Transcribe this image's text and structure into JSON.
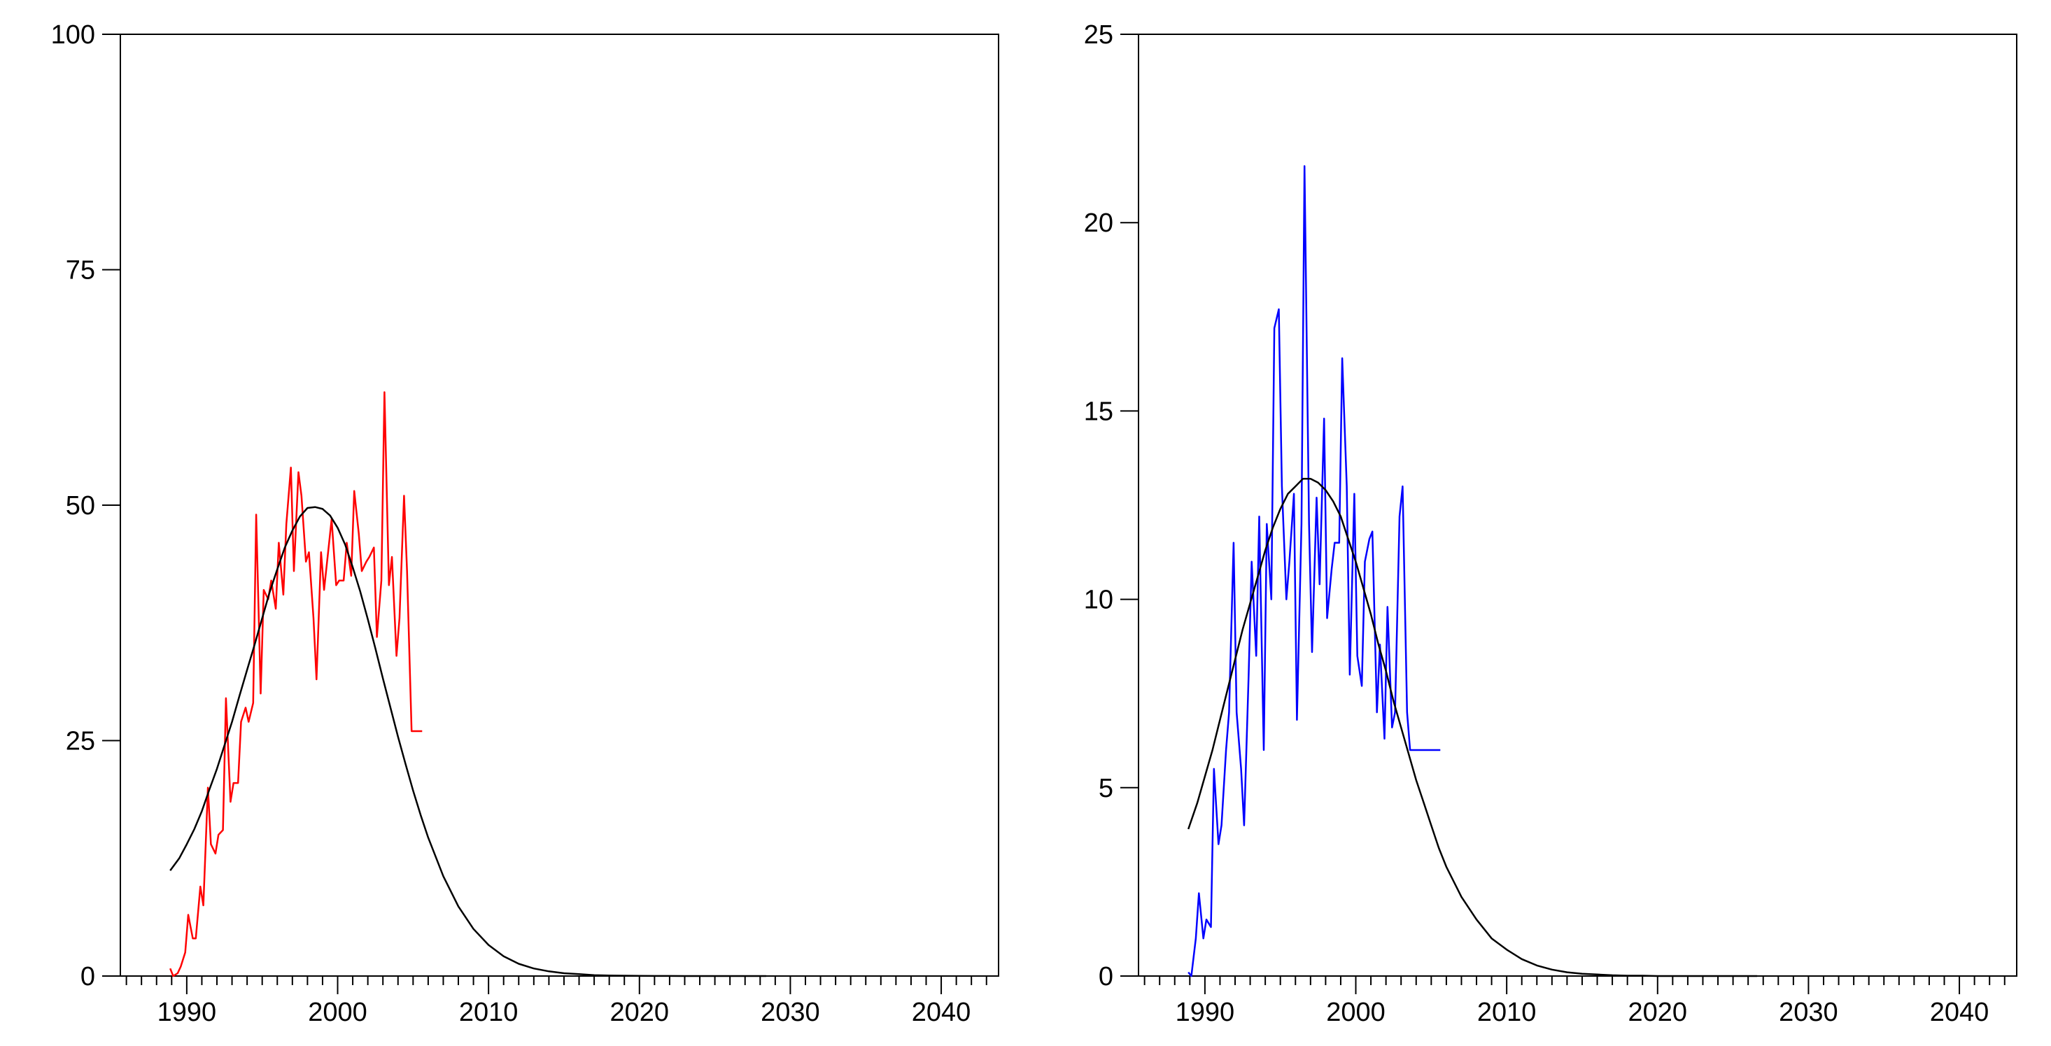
{
  "chart_data": [
    {
      "type": "line",
      "title": "",
      "xlabel": "",
      "ylabel": "",
      "xlim": [
        1985.6,
        2043.8
      ],
      "ylim": [
        0,
        100
      ],
      "x_ticks": [
        1990,
        2000,
        2010,
        2020,
        2030,
        2040
      ],
      "y_ticks": [
        0,
        25,
        50,
        75,
        100
      ],
      "grid": false,
      "legend": "none",
      "series": [
        {
          "color": "#ff0000",
          "x": [
            1988.9,
            1989.1,
            1989.4,
            1989.6,
            1989.9,
            1990.1,
            1990.4,
            1990.6,
            1990.9,
            1991.1,
            1991.4,
            1991.6,
            1991.9,
            1992.1,
            1992.4,
            1992.6,
            1992.9,
            1993.1,
            1993.4,
            1993.6,
            1993.9,
            1994.1,
            1994.4,
            1994.6,
            1994.9,
            1995.1,
            1995.4,
            1995.6,
            1995.9,
            1996.1,
            1996.4,
            1996.6,
            1996.9,
            1997.1,
            1997.4,
            1997.6,
            1997.9,
            1998.1,
            1998.4,
            1998.6,
            1998.9,
            1999.1,
            1999.4,
            1999.6,
            1999.9,
            2000.1,
            2000.4,
            2000.6,
            2000.9,
            2001.1,
            2001.4,
            2001.6,
            2001.9,
            2002.1,
            2002.4,
            2002.6,
            2002.9,
            2003.1,
            2003.4,
            2003.6,
            2003.9,
            2004.1,
            2004.4,
            2004.6,
            2004.9,
            2005.1,
            2005.4,
            2005.6
          ],
          "y": [
            0.8,
            0.0,
            0.3,
            1.0,
            2.5,
            6.5,
            4.0,
            4.0,
            9.5,
            7.5,
            20.0,
            14.0,
            13.0,
            15.0,
            15.5,
            29.5,
            18.5,
            20.5,
            20.5,
            27.0,
            28.5,
            27.0,
            29.0,
            49.0,
            30.0,
            41.0,
            40.0,
            42.0,
            39.0,
            46.0,
            40.5,
            48.0,
            54.0,
            43.0,
            53.5,
            51.0,
            44.0,
            45.0,
            38.0,
            31.5,
            45.0,
            41.0,
            45.5,
            48.5,
            41.5,
            42.0,
            42.0,
            46.0,
            42.5,
            51.5,
            47.0,
            43.0,
            44.0,
            44.5,
            45.5,
            36.0,
            42.0,
            62.0,
            41.5,
            44.5,
            34.0,
            38.0,
            51.0,
            43.0,
            26.0,
            26.0,
            26.0,
            26.0
          ]
        },
        {
          "color": "#000000",
          "x": [
            1988.9,
            1989.5,
            1990.0,
            1990.5,
            1991.0,
            1991.5,
            1992.0,
            1992.5,
            1993.0,
            1993.5,
            1994.0,
            1994.5,
            1995.0,
            1995.5,
            1996.0,
            1996.5,
            1997.0,
            1997.5,
            1998.0,
            1998.5,
            1999.0,
            1999.5,
            2000.0,
            2000.5,
            2001.0,
            2001.5,
            2002.0,
            2002.5,
            2003.0,
            2003.5,
            2004.0,
            2004.5,
            2005.0,
            2005.5,
            2006.0,
            2007.0,
            2008.0,
            2009.0,
            2010.0,
            2011.0,
            2012.0,
            2013.0,
            2014.0,
            2015.0,
            2016.0,
            2017.0,
            2018.0,
            2019.0,
            2020.0,
            2021.0,
            2022.0,
            2023.0,
            2024.0,
            2025.0,
            2026.0,
            2027.0,
            2028.0,
            2028.4
          ],
          "y": [
            11.2,
            12.5,
            14.0,
            15.6,
            17.5,
            19.8,
            22.0,
            24.5,
            27.0,
            29.8,
            32.5,
            35.2,
            38.0,
            40.8,
            43.2,
            45.5,
            47.3,
            48.8,
            49.7,
            49.8,
            49.6,
            48.9,
            47.6,
            45.8,
            43.4,
            40.8,
            37.9,
            34.8,
            31.6,
            28.5,
            25.4,
            22.5,
            19.7,
            17.1,
            14.7,
            10.6,
            7.4,
            5.0,
            3.3,
            2.1,
            1.3,
            0.8,
            0.5,
            0.3,
            0.2,
            0.1,
            0.06,
            0.04,
            0.02,
            0.01,
            0.01,
            0.0,
            0.0,
            0.0,
            0.0,
            0.0,
            0.0,
            0.0
          ]
        }
      ]
    },
    {
      "type": "line",
      "title": "",
      "xlabel": "",
      "ylabel": "",
      "xlim": [
        1985.6,
        2043.8
      ],
      "ylim": [
        0,
        25
      ],
      "x_ticks": [
        1990,
        2000,
        2010,
        2020,
        2030,
        2040
      ],
      "y_ticks": [
        0,
        5,
        10,
        15,
        20,
        25
      ],
      "grid": false,
      "legend": "none",
      "series": [
        {
          "color": "#0000ff",
          "x": [
            1988.9,
            1989.1,
            1989.4,
            1989.6,
            1989.9,
            1990.1,
            1990.4,
            1990.6,
            1990.9,
            1991.1,
            1991.4,
            1991.6,
            1991.9,
            1992.1,
            1992.4,
            1992.6,
            1992.9,
            1993.1,
            1993.4,
            1993.6,
            1993.9,
            1994.1,
            1994.4,
            1994.6,
            1994.9,
            1995.1,
            1995.4,
            1995.6,
            1995.9,
            1996.1,
            1996.4,
            1996.6,
            1996.9,
            1997.1,
            1997.4,
            1997.6,
            1997.9,
            1998.1,
            1998.4,
            1998.6,
            1998.9,
            1999.1,
            1999.4,
            1999.6,
            1999.9,
            2000.1,
            2000.4,
            2000.6,
            2000.9,
            2001.1,
            2001.4,
            2001.6,
            2001.9,
            2002.1,
            2002.4,
            2002.6,
            2002.9,
            2003.1,
            2003.4,
            2003.6,
            2003.9,
            2004.1,
            2004.4,
            2004.6,
            2004.9,
            2005.1,
            2005.4,
            2005.6
          ],
          "y": [
            0.1,
            0.0,
            1.0,
            2.2,
            1.0,
            1.5,
            1.3,
            5.5,
            3.5,
            4.0,
            6.0,
            7.0,
            11.5,
            7.0,
            5.5,
            4.0,
            8.0,
            11.0,
            8.5,
            12.2,
            6.0,
            12.0,
            10.0,
            17.2,
            17.7,
            13.0,
            10.0,
            11.0,
            12.8,
            6.8,
            12.0,
            21.5,
            12.0,
            8.6,
            12.7,
            10.4,
            14.8,
            9.5,
            10.8,
            11.5,
            11.5,
            16.4,
            13.0,
            8.0,
            12.8,
            8.5,
            7.7,
            11.0,
            11.6,
            11.8,
            7.0,
            8.8,
            6.3,
            9.8,
            6.6,
            7.0,
            12.2,
            13.0,
            7.0,
            6.0,
            6.0,
            6.0,
            6.0,
            6.0,
            6.0,
            6.0,
            6.0,
            6.0
          ]
        },
        {
          "color": "#000000",
          "x": [
            1988.9,
            1989.5,
            1990.0,
            1990.5,
            1991.0,
            1991.5,
            1992.0,
            1992.5,
            1993.0,
            1993.5,
            1994.0,
            1994.5,
            1995.0,
            1995.5,
            1996.0,
            1996.5,
            1997.0,
            1997.5,
            1998.0,
            1998.5,
            1999.0,
            1999.5,
            2000.0,
            2000.5,
            2001.0,
            2001.5,
            2002.0,
            2002.5,
            2003.0,
            2003.5,
            2004.0,
            2004.5,
            2005.0,
            2005.5,
            2006.0,
            2007.0,
            2008.0,
            2009.0,
            2010.0,
            2011.0,
            2012.0,
            2013.0,
            2014.0,
            2015.0,
            2016.0,
            2017.0,
            2018.0,
            2019.0,
            2020.0,
            2021.0,
            2022.0,
            2023.0,
            2024.0,
            2025.0,
            2026.0,
            2026.6
          ],
          "y": [
            3.9,
            4.6,
            5.3,
            6.0,
            6.8,
            7.6,
            8.4,
            9.2,
            9.9,
            10.6,
            11.3,
            11.9,
            12.4,
            12.8,
            13.0,
            13.2,
            13.2,
            13.1,
            12.9,
            12.6,
            12.2,
            11.6,
            11.0,
            10.3,
            9.6,
            8.8,
            8.1,
            7.3,
            6.6,
            5.9,
            5.2,
            4.6,
            4.0,
            3.4,
            2.9,
            2.1,
            1.5,
            1.0,
            0.7,
            0.45,
            0.28,
            0.17,
            0.1,
            0.06,
            0.04,
            0.02,
            0.01,
            0.01,
            0.0,
            0.0,
            0.0,
            0.0,
            0.0,
            0.0,
            0.0,
            0.0
          ]
        }
      ]
    }
  ]
}
